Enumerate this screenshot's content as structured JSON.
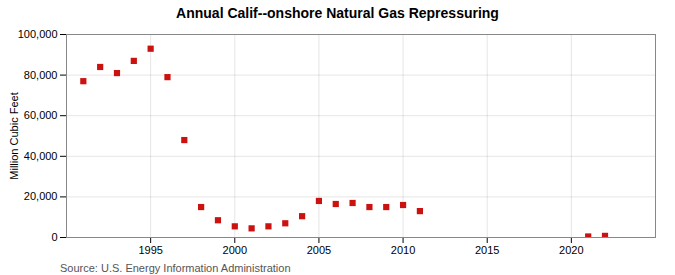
{
  "chart_data": {
    "type": "scatter",
    "title": "Annual Calif--onshore Natural Gas Repressuring",
    "ylabel": "Million Cubic Feet",
    "caption": "Source: U.S. Energy Information Administration",
    "x": [
      1991,
      1992,
      1993,
      1994,
      1995,
      1996,
      1997,
      1998,
      1999,
      2000,
      2001,
      2002,
      2003,
      2004,
      2005,
      2006,
      2007,
      2008,
      2009,
      2010,
      2011,
      2021,
      2022
    ],
    "values": [
      77000,
      84000,
      81000,
      87000,
      93000,
      79000,
      48000,
      15000,
      8500,
      5500,
      4500,
      5500,
      7000,
      10500,
      18000,
      16500,
      17000,
      15000,
      15000,
      16000,
      13000,
      500,
      800
    ],
    "color": "#cc1111",
    "marker": "square",
    "xlim": [
      1990,
      2025
    ],
    "xticks": [
      1995,
      2000,
      2005,
      2010,
      2015,
      2020
    ],
    "ylim": [
      0,
      100000
    ],
    "yticks": [
      0,
      {
        "value": 20000,
        "label": "20,000"
      },
      {
        "value": 40000,
        "label": "40,000"
      },
      {
        "value": 60000,
        "label": "60,000"
      },
      {
        "value": 80000,
        "label": "80,000"
      },
      {
        "value": 100000,
        "label": "100,000"
      }
    ],
    "grid": true
  }
}
